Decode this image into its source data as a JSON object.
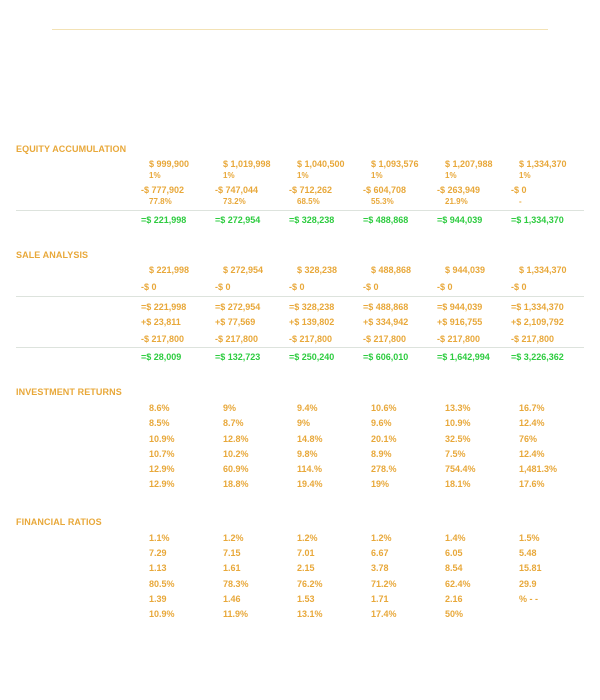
{
  "equity": {
    "title": "EQUITY ACCUMULATION",
    "value": [
      "$ 999,900",
      "$ 1,019,998",
      "$ 1,040,500",
      "$ 1,093,576",
      "$ 1,207,988",
      "$ 1,334,370"
    ],
    "value_pct": [
      "1%",
      "1%",
      "1%",
      "1%",
      "1%",
      "1%"
    ],
    "loan": [
      "-$ 777,902",
      "-$ 747,044",
      "-$ 712,262",
      "-$ 604,708",
      "-$ 263,949",
      "-$ 0"
    ],
    "loan_pct": [
      "77.8%",
      "73.2%",
      "68.5%",
      "55.3%",
      "21.9%",
      "-"
    ],
    "equity_total": [
      "=$ 221,998",
      "=$ 272,954",
      "=$ 328,238",
      "=$ 488,868",
      "=$ 944,039",
      "=$ 1,334,370"
    ]
  },
  "sale": {
    "title": "SALE ANALYSIS",
    "equity": [
      "$ 221,998",
      "$ 272,954",
      "$ 328,238",
      "$ 488,868",
      "$ 944,039",
      "$ 1,334,370"
    ],
    "costs": [
      "-$ 0",
      "-$ 0",
      "-$ 0",
      "-$ 0",
      "-$ 0",
      "-$ 0"
    ],
    "net_equity": [
      "=$ 221,998",
      "=$ 272,954",
      "=$ 328,238",
      "=$ 488,868",
      "=$ 944,039",
      "=$ 1,334,370"
    ],
    "cashflow": [
      "+$ 23,811",
      "+$ 77,569",
      "+$ 139,802",
      "+$ 334,942",
      "+$ 916,755",
      "+$ 2,109,792"
    ],
    "investment": [
      "-$ 217,800",
      "-$ 217,800",
      "-$ 217,800",
      "-$ 217,800",
      "-$ 217,800",
      "-$ 217,800"
    ],
    "profit": [
      "=$ 28,009",
      "=$ 132,723",
      "=$ 250,240",
      "=$ 606,010",
      "=$ 1,642,994",
      "=$ 3,226,362"
    ]
  },
  "returns": {
    "title": "INVESTMENT RETURNS",
    "rows": [
      [
        "8.6%",
        "9%",
        "9.4%",
        "10.6%",
        "13.3%",
        "16.7%"
      ],
      [
        "8.5%",
        "8.7%",
        "9%",
        "9.6%",
        "10.9%",
        "12.4%"
      ],
      [
        "10.9%",
        "12.8%",
        "14.8%",
        "20.1%",
        "32.5%",
        "76%"
      ],
      [
        "10.7%",
        "10.2%",
        "9.8%",
        "8.9%",
        "7.5%",
        "12.4%"
      ],
      [
        "12.9%",
        "60.9%",
        "114.%",
        "278.%",
        "754.4%",
        "1,481.3%"
      ],
      [
        "12.9%",
        "18.8%",
        "19.4%",
        "19%",
        "18.1%",
        "17.6%"
      ]
    ]
  },
  "ratios": {
    "title": "FINANCIAL RATIOS",
    "rows": [
      [
        "1.1%",
        "1.2%",
        "1.2%",
        "1.2%",
        "1.4%",
        "1.5%"
      ],
      [
        "7.29",
        "7.15",
        "7.01",
        "6.67",
        "6.05",
        "5.48"
      ],
      [
        "1.13",
        "1.61",
        "2.15",
        "3.78",
        "8.54",
        "15.81"
      ],
      [
        "80.5%",
        "78.3%",
        "76.2%",
        "71.2%",
        "62.4%",
        "29.9"
      ],
      [
        "1.39",
        "1.46",
        "1.53",
        "1.71",
        "2.16",
        "% - -"
      ],
      [
        "10.9%",
        "11.9%",
        "13.1%",
        "17.4%",
        "50%",
        ""
      ]
    ]
  },
  "colors": {
    "label": "#e8a83a",
    "total": "#2ecc40"
  }
}
